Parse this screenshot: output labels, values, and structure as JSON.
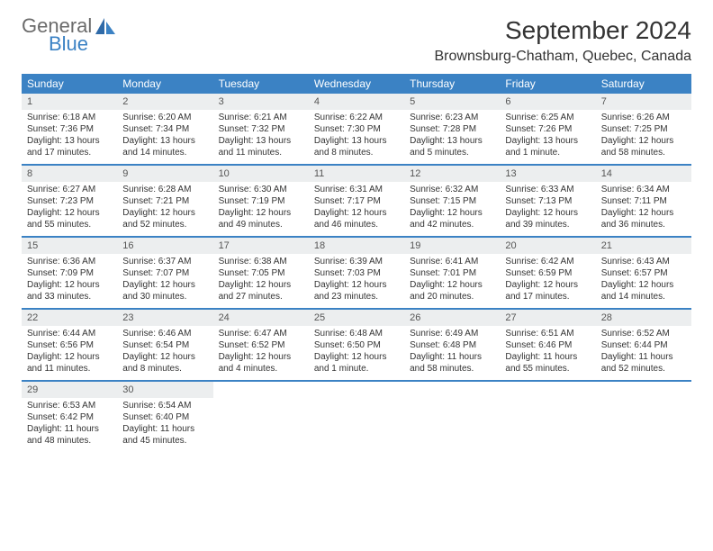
{
  "brand": {
    "part1": "General",
    "part2": "Blue"
  },
  "title": "September 2024",
  "location": "Brownsburg-Chatham, Quebec, Canada",
  "colors": {
    "header_bg": "#3b82c4",
    "daynum_bg": "#eceeef",
    "text": "#333333",
    "logo_gray": "#6b6b6b",
    "logo_blue": "#3b82c4"
  },
  "daysOfWeek": [
    "Sunday",
    "Monday",
    "Tuesday",
    "Wednesday",
    "Thursday",
    "Friday",
    "Saturday"
  ],
  "weeks": [
    [
      {
        "n": "1",
        "sr": "Sunrise: 6:18 AM",
        "ss": "Sunset: 7:36 PM",
        "d1": "Daylight: 13 hours",
        "d2": "and 17 minutes."
      },
      {
        "n": "2",
        "sr": "Sunrise: 6:20 AM",
        "ss": "Sunset: 7:34 PM",
        "d1": "Daylight: 13 hours",
        "d2": "and 14 minutes."
      },
      {
        "n": "3",
        "sr": "Sunrise: 6:21 AM",
        "ss": "Sunset: 7:32 PM",
        "d1": "Daylight: 13 hours",
        "d2": "and 11 minutes."
      },
      {
        "n": "4",
        "sr": "Sunrise: 6:22 AM",
        "ss": "Sunset: 7:30 PM",
        "d1": "Daylight: 13 hours",
        "d2": "and 8 minutes."
      },
      {
        "n": "5",
        "sr": "Sunrise: 6:23 AM",
        "ss": "Sunset: 7:28 PM",
        "d1": "Daylight: 13 hours",
        "d2": "and 5 minutes."
      },
      {
        "n": "6",
        "sr": "Sunrise: 6:25 AM",
        "ss": "Sunset: 7:26 PM",
        "d1": "Daylight: 13 hours",
        "d2": "and 1 minute."
      },
      {
        "n": "7",
        "sr": "Sunrise: 6:26 AM",
        "ss": "Sunset: 7:25 PM",
        "d1": "Daylight: 12 hours",
        "d2": "and 58 minutes."
      }
    ],
    [
      {
        "n": "8",
        "sr": "Sunrise: 6:27 AM",
        "ss": "Sunset: 7:23 PM",
        "d1": "Daylight: 12 hours",
        "d2": "and 55 minutes."
      },
      {
        "n": "9",
        "sr": "Sunrise: 6:28 AM",
        "ss": "Sunset: 7:21 PM",
        "d1": "Daylight: 12 hours",
        "d2": "and 52 minutes."
      },
      {
        "n": "10",
        "sr": "Sunrise: 6:30 AM",
        "ss": "Sunset: 7:19 PM",
        "d1": "Daylight: 12 hours",
        "d2": "and 49 minutes."
      },
      {
        "n": "11",
        "sr": "Sunrise: 6:31 AM",
        "ss": "Sunset: 7:17 PM",
        "d1": "Daylight: 12 hours",
        "d2": "and 46 minutes."
      },
      {
        "n": "12",
        "sr": "Sunrise: 6:32 AM",
        "ss": "Sunset: 7:15 PM",
        "d1": "Daylight: 12 hours",
        "d2": "and 42 minutes."
      },
      {
        "n": "13",
        "sr": "Sunrise: 6:33 AM",
        "ss": "Sunset: 7:13 PM",
        "d1": "Daylight: 12 hours",
        "d2": "and 39 minutes."
      },
      {
        "n": "14",
        "sr": "Sunrise: 6:34 AM",
        "ss": "Sunset: 7:11 PM",
        "d1": "Daylight: 12 hours",
        "d2": "and 36 minutes."
      }
    ],
    [
      {
        "n": "15",
        "sr": "Sunrise: 6:36 AM",
        "ss": "Sunset: 7:09 PM",
        "d1": "Daylight: 12 hours",
        "d2": "and 33 minutes."
      },
      {
        "n": "16",
        "sr": "Sunrise: 6:37 AM",
        "ss": "Sunset: 7:07 PM",
        "d1": "Daylight: 12 hours",
        "d2": "and 30 minutes."
      },
      {
        "n": "17",
        "sr": "Sunrise: 6:38 AM",
        "ss": "Sunset: 7:05 PM",
        "d1": "Daylight: 12 hours",
        "d2": "and 27 minutes."
      },
      {
        "n": "18",
        "sr": "Sunrise: 6:39 AM",
        "ss": "Sunset: 7:03 PM",
        "d1": "Daylight: 12 hours",
        "d2": "and 23 minutes."
      },
      {
        "n": "19",
        "sr": "Sunrise: 6:41 AM",
        "ss": "Sunset: 7:01 PM",
        "d1": "Daylight: 12 hours",
        "d2": "and 20 minutes."
      },
      {
        "n": "20",
        "sr": "Sunrise: 6:42 AM",
        "ss": "Sunset: 6:59 PM",
        "d1": "Daylight: 12 hours",
        "d2": "and 17 minutes."
      },
      {
        "n": "21",
        "sr": "Sunrise: 6:43 AM",
        "ss": "Sunset: 6:57 PM",
        "d1": "Daylight: 12 hours",
        "d2": "and 14 minutes."
      }
    ],
    [
      {
        "n": "22",
        "sr": "Sunrise: 6:44 AM",
        "ss": "Sunset: 6:56 PM",
        "d1": "Daylight: 12 hours",
        "d2": "and 11 minutes."
      },
      {
        "n": "23",
        "sr": "Sunrise: 6:46 AM",
        "ss": "Sunset: 6:54 PM",
        "d1": "Daylight: 12 hours",
        "d2": "and 8 minutes."
      },
      {
        "n": "24",
        "sr": "Sunrise: 6:47 AM",
        "ss": "Sunset: 6:52 PM",
        "d1": "Daylight: 12 hours",
        "d2": "and 4 minutes."
      },
      {
        "n": "25",
        "sr": "Sunrise: 6:48 AM",
        "ss": "Sunset: 6:50 PM",
        "d1": "Daylight: 12 hours",
        "d2": "and 1 minute."
      },
      {
        "n": "26",
        "sr": "Sunrise: 6:49 AM",
        "ss": "Sunset: 6:48 PM",
        "d1": "Daylight: 11 hours",
        "d2": "and 58 minutes."
      },
      {
        "n": "27",
        "sr": "Sunrise: 6:51 AM",
        "ss": "Sunset: 6:46 PM",
        "d1": "Daylight: 11 hours",
        "d2": "and 55 minutes."
      },
      {
        "n": "28",
        "sr": "Sunrise: 6:52 AM",
        "ss": "Sunset: 6:44 PM",
        "d1": "Daylight: 11 hours",
        "d2": "and 52 minutes."
      }
    ],
    [
      {
        "n": "29",
        "sr": "Sunrise: 6:53 AM",
        "ss": "Sunset: 6:42 PM",
        "d1": "Daylight: 11 hours",
        "d2": "and 48 minutes."
      },
      {
        "n": "30",
        "sr": "Sunrise: 6:54 AM",
        "ss": "Sunset: 6:40 PM",
        "d1": "Daylight: 11 hours",
        "d2": "and 45 minutes."
      },
      null,
      null,
      null,
      null,
      null
    ]
  ]
}
